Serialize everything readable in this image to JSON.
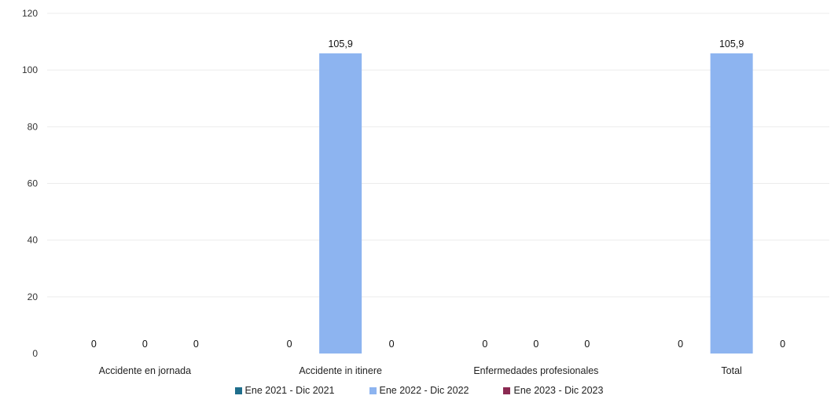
{
  "chart_data": {
    "type": "bar",
    "categories": [
      "Accidente en jornada",
      "Accidente in itinere",
      "Enfermedades profesionales",
      "Total"
    ],
    "series": [
      {
        "name": "Ene 2021 - Dic 2021",
        "color": "#1f6e8c",
        "values": [
          0,
          0,
          0,
          0
        ],
        "labels": [
          "0",
          "0",
          "0",
          "0"
        ]
      },
      {
        "name": "Ene 2022 - Dic 2022",
        "color": "#8db4f0",
        "values": [
          0,
          105.9,
          0,
          105.9
        ],
        "labels": [
          "0",
          "105,9",
          "0",
          "105,9"
        ]
      },
      {
        "name": "Ene 2023 - Dic 2023",
        "color": "#8b2a52",
        "values": [
          0,
          0,
          0,
          0
        ],
        "labels": [
          "0",
          "0",
          "0",
          "0"
        ]
      }
    ],
    "yticks": [
      "0",
      "20",
      "40",
      "60",
      "80",
      "100",
      "120"
    ],
    "ylim": [
      0,
      120
    ],
    "grid": true,
    "legend_position": "bottom"
  }
}
